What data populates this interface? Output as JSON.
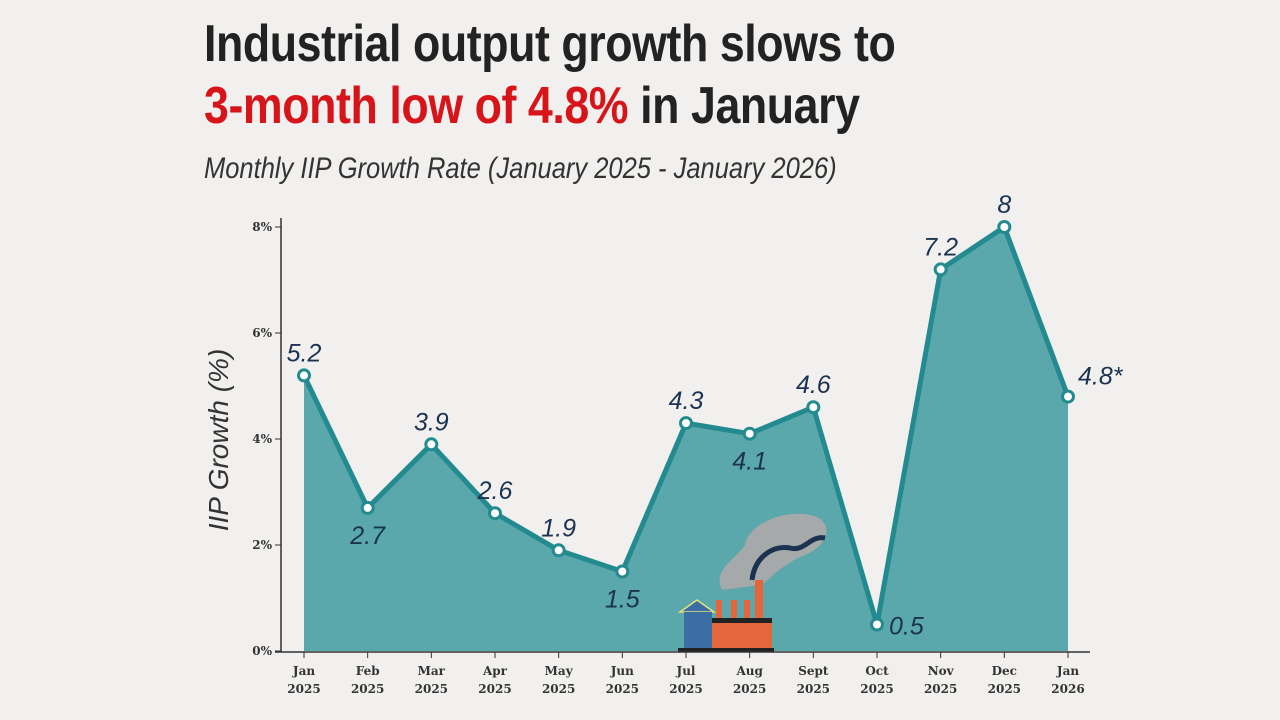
{
  "headline": {
    "line1": "Industrial output growth slows to",
    "line2_highlight": "3-month low of 4.8%",
    "line2_rest": " in January"
  },
  "subtitle": "Monthly IIP Growth Rate (January 2025 - January 2026)",
  "colors": {
    "accent": "#d8141b",
    "line": "#238a8f",
    "fill": "#5aa7ac",
    "label": "#1b3350"
  },
  "illustration": "factory-icon",
  "chart_data": {
    "type": "area",
    "title": "Monthly IIP Growth Rate (January 2025 - January 2026)",
    "ylabel": "IIP Growth (%)",
    "xlabel": "",
    "ylim": [
      0,
      8
    ],
    "yticks": [
      "0%",
      "2%",
      "4%",
      "6%",
      "8%"
    ],
    "grid": false,
    "categories": [
      [
        "Jan",
        "2025"
      ],
      [
        "Feb",
        "2025"
      ],
      [
        "Mar",
        "2025"
      ],
      [
        "Apr",
        "2025"
      ],
      [
        "May",
        "2025"
      ],
      [
        "Jun",
        "2025"
      ],
      [
        "Jul",
        "2025"
      ],
      [
        "Aug",
        "2025"
      ],
      [
        "Sept",
        "2025"
      ],
      [
        "Oct",
        "2025"
      ],
      [
        "Nov",
        "2025"
      ],
      [
        "Dec",
        "2025"
      ],
      [
        "Jan",
        "2026"
      ]
    ],
    "values": [
      5.2,
      2.7,
      3.9,
      2.6,
      1.9,
      1.5,
      4.3,
      4.1,
      4.6,
      0.5,
      7.2,
      8,
      4.8
    ],
    "data_labels": [
      "5.2",
      "2.7",
      "3.9",
      "2.6",
      "1.9",
      "1.5",
      "4.3",
      "4.1",
      "4.6",
      "0.5",
      "7.2",
      "8",
      "4.8*"
    ]
  }
}
